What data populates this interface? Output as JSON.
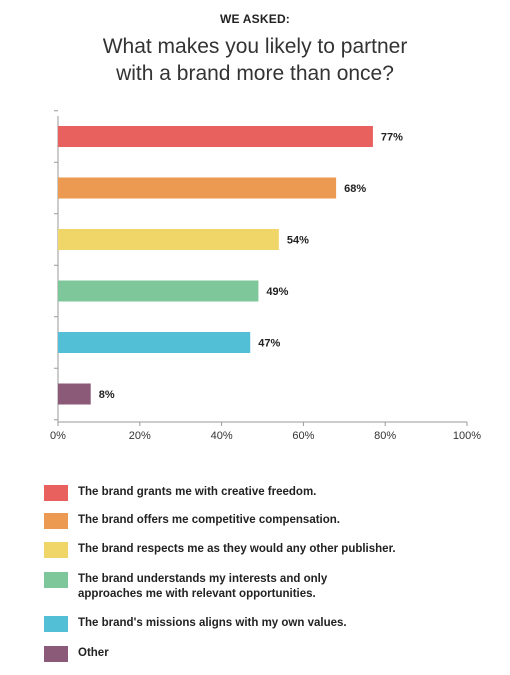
{
  "header": {
    "eyebrow": "WE ASKED:",
    "title_line1": "What makes you likely to partner",
    "title_line2": "with a brand more than once?"
  },
  "chart_data": {
    "type": "bar",
    "orientation": "horizontal",
    "categories": [
      "The brand grants me with creative freedom.",
      "The brand offers me competitive compensation.",
      "The brand respects me as they would any other publisher.",
      "The brand understands my interests and only approaches me with relevant opportunities.",
      "The brand's missions aligns with my own values.",
      "Other"
    ],
    "values": [
      77,
      68,
      54,
      49,
      47,
      8
    ],
    "value_labels": [
      "77%",
      "68%",
      "54%",
      "49%",
      "47%",
      "8%"
    ],
    "colors": [
      "#e8615f",
      "#ec9a52",
      "#f0d568",
      "#7ec79a",
      "#52bfd6",
      "#8a5a78"
    ],
    "xlim": [
      0,
      100
    ],
    "xticks": [
      "0%",
      "20%",
      "40%",
      "60%",
      "80%",
      "100%"
    ],
    "xlabel": "",
    "ylabel": "",
    "grid": false,
    "legend_position": "bottom"
  },
  "legend": [
    {
      "label_line1": "The brand grants me with creative freedom.",
      "label_line2": ""
    },
    {
      "label_line1": "The brand offers me competitive compensation.",
      "label_line2": ""
    },
    {
      "label_line1": "The brand respects me as they would any other publisher.",
      "label_line2": ""
    },
    {
      "label_line1": "The brand understands my interests and only",
      "label_line2": "approaches me with relevant opportunities."
    },
    {
      "label_line1": "The brand's missions aligns with my own values.",
      "label_line2": ""
    },
    {
      "label_line1": "Other",
      "label_line2": ""
    }
  ]
}
